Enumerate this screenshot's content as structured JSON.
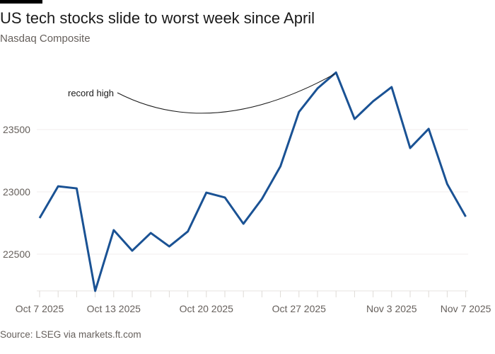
{
  "title": "US tech stocks slide to worst week since April",
  "subtitle": "Nasdaq Composite",
  "source": "Source: LSEG via markets.ft.com",
  "colors": {
    "line": "#1a5294",
    "grid": "#f0eeec",
    "text": "#66605c"
  },
  "chart_data": {
    "type": "line",
    "title": "US tech stocks slide to worst week since April",
    "subtitle": "Nasdaq Composite",
    "x": [
      "2025-10-07",
      "2025-10-08",
      "2025-10-09",
      "2025-10-10",
      "2025-10-13",
      "2025-10-14",
      "2025-10-15",
      "2025-10-16",
      "2025-10-17",
      "2025-10-20",
      "2025-10-21",
      "2025-10-22",
      "2025-10-23",
      "2025-10-24",
      "2025-10-27",
      "2025-10-28",
      "2025-10-29",
      "2025-10-30",
      "2025-10-31",
      "2025-11-03",
      "2025-11-04",
      "2025-11-05",
      "2025-11-06",
      "2025-11-07"
    ],
    "series": [
      {
        "values": [
          22790,
          23045,
          23028,
          22205,
          22693,
          22528,
          22670,
          22562,
          22682,
          22994,
          22955,
          22744,
          22943,
          23205,
          23642,
          23830,
          23958,
          23585,
          23727,
          23841,
          23352,
          23506,
          23063,
          22801
        ]
      }
    ],
    "yticks": [
      "22500",
      "23000",
      "23500"
    ],
    "ytick_values": [
      22500,
      23000,
      23500
    ],
    "xticks": [
      "Oct 7 2025",
      "Oct 13 2025",
      "Oct 20 2025",
      "Oct 27 2025",
      "Nov 3 2025",
      "Nov 7 2025"
    ],
    "xtick_index": [
      0,
      4,
      9,
      14,
      19,
      23
    ],
    "ylim": [
      22205,
      24000
    ],
    "grid": true,
    "annotation": {
      "text": "record high",
      "index": 16
    }
  }
}
